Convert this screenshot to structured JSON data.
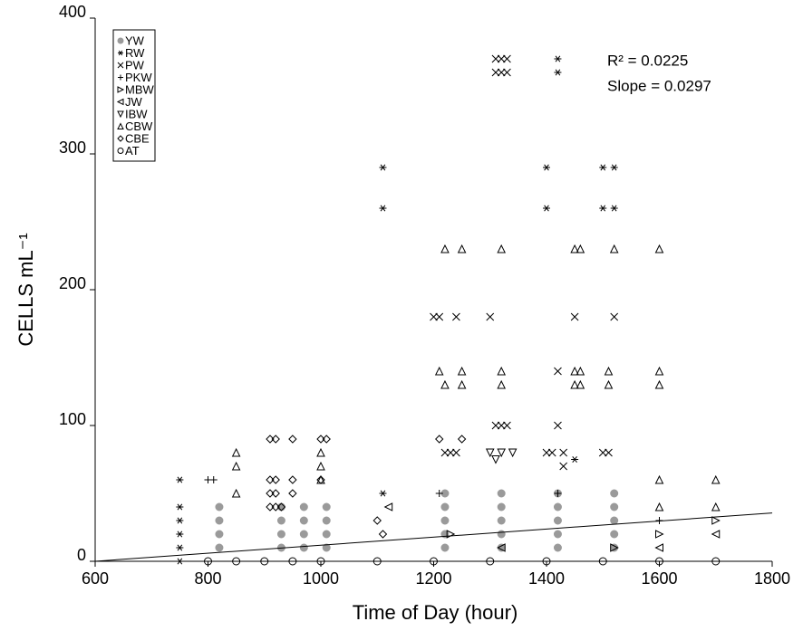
{
  "chart_data": {
    "type": "scatter",
    "x_label": "Time of Day (hour)",
    "y_label": "CELLS mL⁻¹",
    "annotations": [
      "R² = 0.0225",
      "Slope = 0.0297"
    ],
    "xlim": [
      600,
      1800
    ],
    "xticks": [
      600,
      800,
      1000,
      1200,
      1400,
      1600,
      1800
    ],
    "ylim": [
      0,
      400
    ],
    "yticks": [
      0,
      100,
      200,
      300,
      400
    ],
    "grid": false,
    "legend": "upper left",
    "trend_line": {
      "x": [
        600,
        1800
      ],
      "y": [
        0,
        35.6
      ]
    },
    "series": [
      {
        "name": "YW",
        "marker": "circle-filled",
        "color": "#9a9a9a",
        "x": [
          820,
          820,
          820,
          820,
          930,
          930,
          930,
          930,
          970,
          970,
          970,
          970,
          1010,
          1010,
          1010,
          1010,
          1220,
          1220,
          1220,
          1220,
          1220,
          1320,
          1320,
          1320,
          1320,
          1320,
          1420,
          1420,
          1420,
          1420,
          1420,
          1520,
          1520,
          1520,
          1520,
          1520
        ],
        "y": [
          10,
          20,
          30,
          40,
          10,
          20,
          30,
          40,
          10,
          20,
          30,
          40,
          10,
          20,
          30,
          40,
          10,
          20,
          30,
          40,
          50,
          10,
          20,
          30,
          40,
          50,
          10,
          20,
          30,
          40,
          50,
          10,
          20,
          30,
          40,
          50
        ]
      },
      {
        "name": "RW",
        "marker": "asterisk",
        "color": "#000000",
        "x": [
          750,
          750,
          750,
          750,
          750,
          750,
          1110,
          1110,
          1110,
          1400,
          1400,
          1420,
          1420,
          1500,
          1500,
          1520,
          1520,
          1450
        ],
        "y": [
          0,
          10,
          20,
          30,
          40,
          60,
          290,
          260,
          50,
          290,
          260,
          370,
          360,
          290,
          260,
          290,
          260,
          75
        ]
      },
      {
        "name": "PW",
        "marker": "x",
        "color": "#000000",
        "x": [
          1310,
          1320,
          1330,
          1310,
          1320,
          1330,
          1300,
          1450,
          1240,
          1200,
          1210,
          1420,
          1310,
          1320,
          1330,
          1220,
          1230,
          1240,
          1400,
          1410,
          1430,
          1500,
          1510,
          1430,
          1420,
          1520
        ],
        "y": [
          370,
          370,
          370,
          360,
          360,
          360,
          180,
          180,
          180,
          180,
          180,
          100,
          100,
          100,
          100,
          80,
          80,
          80,
          80,
          80,
          80,
          80,
          80,
          70,
          140,
          180
        ]
      },
      {
        "name": "PKW",
        "marker": "plus",
        "color": "#000000",
        "x": [
          800,
          810,
          1210,
          1420,
          1600
        ],
        "y": [
          60,
          60,
          50,
          50,
          30
        ]
      },
      {
        "name": "MBW",
        "marker": "tri-right",
        "color": "#000000",
        "x": [
          1600,
          1700,
          1230,
          1520
        ],
        "y": [
          20,
          30,
          20,
          10
        ]
      },
      {
        "name": "JW",
        "marker": "tri-left",
        "color": "#000000",
        "x": [
          1600,
          1700,
          1320,
          1120
        ],
        "y": [
          10,
          20,
          10,
          40
        ]
      },
      {
        "name": "IBW",
        "marker": "tri-down",
        "color": "#000000",
        "x": [
          1300,
          1320,
          1340,
          1310
        ],
        "y": [
          80,
          80,
          80,
          75
        ]
      },
      {
        "name": "CBW",
        "marker": "tri-up",
        "color": "#000000",
        "x": [
          850,
          850,
          850,
          1000,
          1000,
          1000,
          1220,
          1250,
          1320,
          1450,
          1460,
          1520,
          1600,
          1220,
          1250,
          1320,
          1450,
          1460,
          1510,
          1600,
          1600,
          1210,
          1250,
          1320,
          1450,
          1460,
          1510,
          1600,
          1600,
          1700,
          1700
        ],
        "y": [
          80,
          70,
          50,
          80,
          70,
          60,
          230,
          230,
          230,
          230,
          230,
          230,
          230,
          130,
          130,
          130,
          130,
          130,
          130,
          130,
          140,
          140,
          140,
          140,
          140,
          140,
          140,
          60,
          40,
          60,
          40
        ]
      },
      {
        "name": "CBE",
        "marker": "diamond",
        "color": "#000000",
        "x": [
          910,
          920,
          950,
          1000,
          1010,
          910,
          920,
          950,
          1000,
          910,
          920,
          950,
          910,
          920,
          930,
          1210,
          1250,
          1100,
          1110
        ],
        "y": [
          90,
          90,
          90,
          90,
          90,
          60,
          60,
          60,
          60,
          50,
          50,
          50,
          40,
          40,
          40,
          90,
          90,
          30,
          20
        ]
      },
      {
        "name": "AT",
        "marker": "circle",
        "color": "#000000",
        "x": [
          800,
          850,
          900,
          950,
          1000,
          1100,
          1200,
          1300,
          1400,
          1500,
          1600,
          1700
        ],
        "y": [
          0,
          0,
          0,
          0,
          0,
          0,
          0,
          0,
          0,
          0,
          0,
          0
        ]
      }
    ]
  }
}
